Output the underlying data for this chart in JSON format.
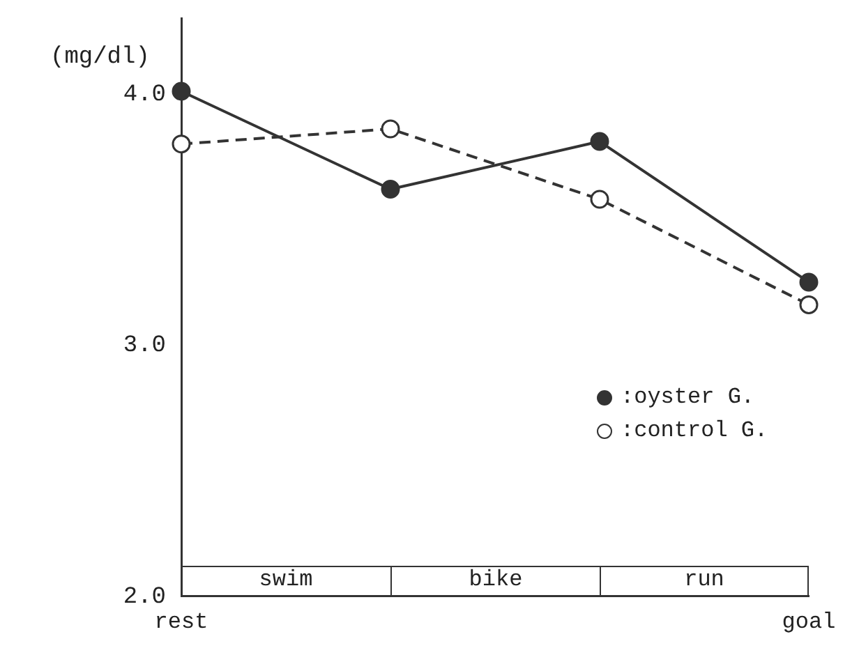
{
  "chart_data": {
    "type": "line",
    "ylabel": "(mg/dl)",
    "categories": [
      "rest",
      null,
      null,
      "goal"
    ],
    "series": [
      {
        "name": ":oyster G.",
        "color": "#333333",
        "values": [
          4.01,
          3.62,
          3.81,
          3.25
        ],
        "line_style": "solid",
        "marker": "circle"
      },
      {
        "name": ":control G.",
        "color": "#333333",
        "values": [
          3.8,
          3.86,
          3.58,
          3.16
        ],
        "line_style": "dashed",
        "marker": "circle"
      }
    ],
    "ylim": [
      2,
      4.3
    ],
    "yticks": [
      {
        "value": 2,
        "label": "2.0"
      },
      {
        "value": 3,
        "label": "3.0"
      },
      {
        "value": 4,
        "label": "4.0"
      }
    ],
    "annotations": [
      "swim",
      "bike",
      "run"
    ],
    "legend": "right",
    "grid": false
  }
}
